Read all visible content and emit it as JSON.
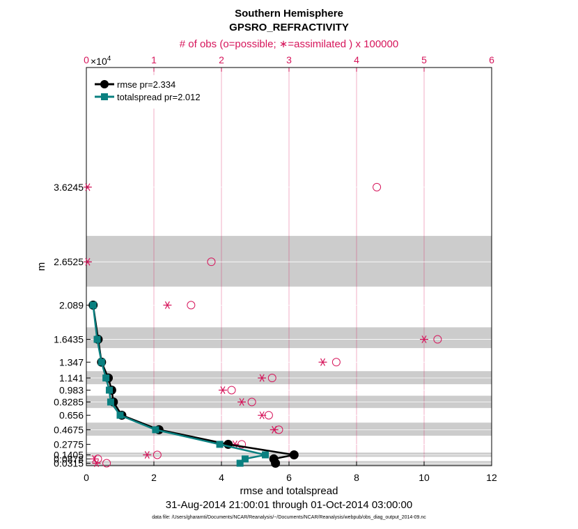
{
  "chart_data": {
    "type": "line",
    "title": "Southern Hemisphere",
    "subtitle": "GPSRO_REFRACTIVITY",
    "top_axis_label": "# of obs (o=possible; ∗=assimilated ) x 100000",
    "top_axis_multiplier": "×10",
    "top_axis_exponent": "4",
    "xlabel": "rmse and totalspread",
    "ylabel": "m",
    "date_range": "31-Aug-2014 21:00:01 through 01-Oct-2014 03:00:00",
    "footnote": "data file: /Users/gharamti/Documents/NCAR/Reanalysis/~/Documents/NCAR/Reanalysis/webpub/obs_diag_output_2014-09.nc",
    "xlim": [
      0,
      12
    ],
    "xticks": [
      0,
      2,
      4,
      6,
      8,
      10,
      12
    ],
    "top_xlim": [
      0,
      6
    ],
    "top_xticks": [
      0,
      1,
      2,
      3,
      4,
      5,
      6
    ],
    "y_levels": [
      0.0315,
      0.0878,
      0.1405,
      0.2775,
      0.4675,
      0.656,
      0.8285,
      0.983,
      1.141,
      1.347,
      1.6435,
      2.089,
      2.6525,
      3.6245
    ],
    "y_tick_labels": [
      "0.0315",
      "0.0878",
      "0.1405",
      "0.2775",
      "0.4675",
      "0.656",
      "0.8285",
      "0.983",
      "1.141",
      "1.347",
      "1.6435",
      "2.089",
      "2.6525",
      "3.6245"
    ],
    "y_tick_labels_visible": [
      "0.0315",
      "0.0878",
      "0.1405",
      "0.2775",
      "0.4675",
      "0.656",
      "0.8285",
      "0.983",
      "1.141",
      "1.347",
      "1.6435",
      "2.089",
      "2.6525",
      "3.6245"
    ],
    "shaded_bands": [
      [
        0.0,
        0.06
      ],
      [
        0.115,
        0.17
      ],
      [
        0.39,
        0.56
      ],
      [
        0.75,
        0.91
      ],
      [
        1.06,
        1.23
      ],
      [
        1.53,
        1.8
      ],
      [
        2.33,
        2.99
      ]
    ],
    "series": [
      {
        "name": "rmse",
        "legend": "rmse pr=2.334",
        "color": "#000000",
        "marker": "circle",
        "y": [
          0.0315,
          0.0878,
          0.1405,
          0.2775,
          0.4675,
          0.656,
          0.8285,
          0.983,
          1.141,
          1.347,
          1.6435,
          2.089
        ],
        "values": [
          5.6,
          5.55,
          6.15,
          4.2,
          2.15,
          1.05,
          0.8,
          0.75,
          0.65,
          0.45,
          0.35,
          0.2
        ]
      },
      {
        "name": "totalspread",
        "legend": "totalspread pr=2.012",
        "color": "#0a8080",
        "marker": "square",
        "y": [
          0.0315,
          0.0878,
          0.1405,
          0.2775,
          0.4675,
          0.656,
          0.8285,
          0.983,
          1.141,
          1.347,
          1.6435,
          2.089
        ],
        "values": [
          4.55,
          4.7,
          5.3,
          3.95,
          2.05,
          1.0,
          0.72,
          0.68,
          0.58,
          0.45,
          0.32,
          0.2
        ]
      }
    ],
    "obs_possible": {
      "y": [
        0.0315,
        0.0878,
        0.1405,
        0.2775,
        0.4675,
        0.656,
        0.8285,
        0.983,
        1.141,
        1.347,
        1.6435,
        2.089,
        2.6525,
        3.6245
      ],
      "values": [
        0.3,
        0.17,
        1.05,
        2.3,
        2.85,
        2.7,
        2.45,
        2.15,
        2.75,
        3.7,
        5.2,
        1.55,
        1.85,
        4.3
      ]
    },
    "obs_assimilated": {
      "y": [
        0.0315,
        0.0878,
        0.1405,
        0.2775,
        0.4675,
        0.656,
        0.8285,
        0.983,
        1.141,
        1.347,
        1.6435,
        2.089,
        2.6525,
        3.6245
      ],
      "values": [
        0.15,
        0.12,
        0.9,
        2.2,
        2.78,
        2.6,
        2.3,
        2.02,
        2.6,
        3.5,
        5.0,
        1.2,
        0.02,
        0.02
      ]
    }
  }
}
